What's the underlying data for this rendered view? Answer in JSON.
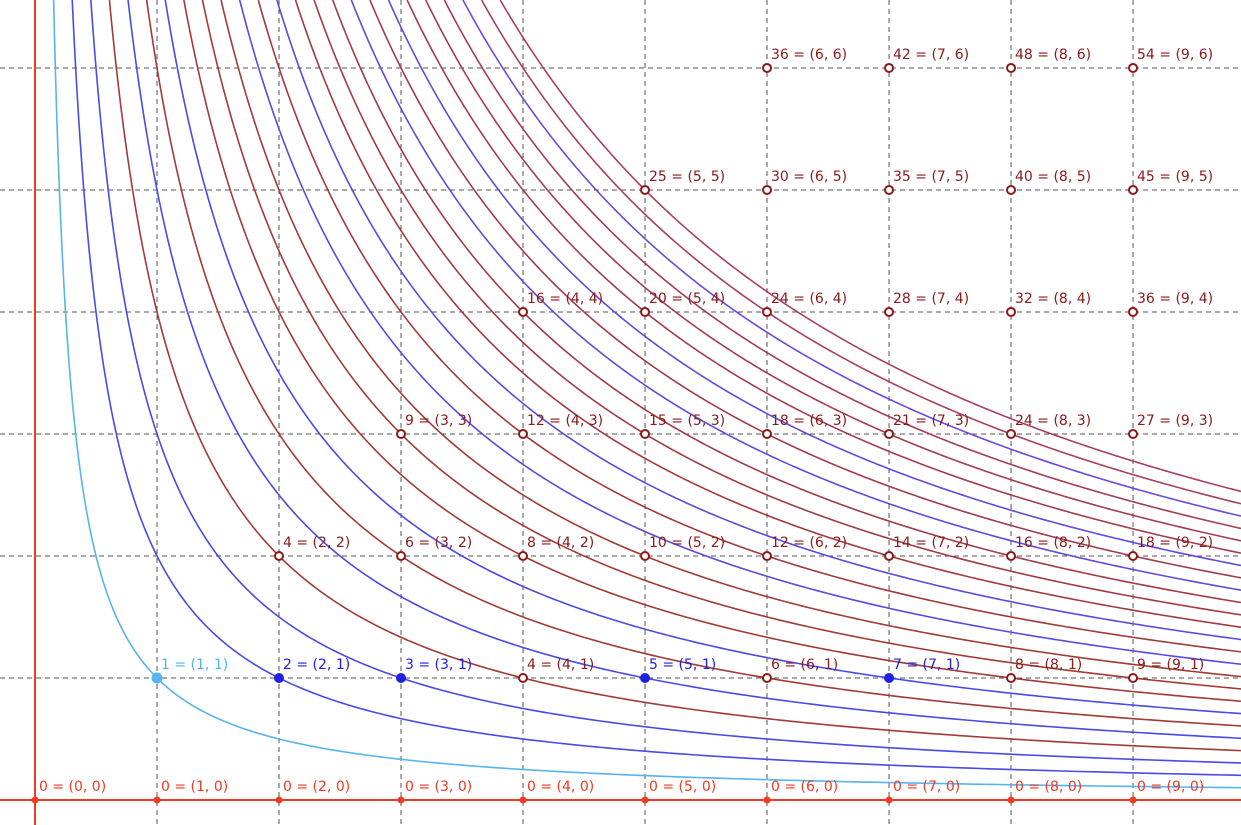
{
  "plot": {
    "xlim": [
      -0.287,
      9.885
    ],
    "ylim": [
      -0.205,
      6.557
    ],
    "xgrid": [
      1,
      2,
      3,
      4,
      5,
      6,
      7,
      8,
      9
    ],
    "ygrid": [
      1,
      2,
      3,
      4,
      5,
      6
    ],
    "axis_color": "#f03a24",
    "grid_color": "#555555",
    "curves": [
      {
        "k": 1,
        "color": "#56b4ee"
      },
      {
        "k": 2,
        "color": "#4a4ae6"
      },
      {
        "k": 3,
        "color": "#4a4ae6"
      },
      {
        "k": 4,
        "color": "#a23a36"
      },
      {
        "k": 5,
        "color": "#4a4ae6"
      },
      {
        "k": 6,
        "color": "#a23a36"
      },
      {
        "k": 7,
        "color": "#4a4ae6"
      },
      {
        "k": 8,
        "color": "#a23a36"
      },
      {
        "k": 9,
        "color": "#a23a36"
      },
      {
        "k": 10,
        "color": "#a23a36"
      },
      {
        "k": 11,
        "color": "#5a4ae0"
      },
      {
        "k": 12,
        "color": "#a23a3c"
      },
      {
        "k": 13,
        "color": "#5a4ae0"
      },
      {
        "k": 14,
        "color": "#a23a40"
      },
      {
        "k": 15,
        "color": "#a23a44"
      },
      {
        "k": 16,
        "color": "#a23a48"
      },
      {
        "k": 17,
        "color": "#604ae0"
      },
      {
        "k": 18,
        "color": "#a23a4c"
      },
      {
        "k": 19,
        "color": "#604ae0"
      },
      {
        "k": 20,
        "color": "#a43c50"
      },
      {
        "k": 21,
        "color": "#a43c54"
      },
      {
        "k": 22,
        "color": "#a43c58"
      },
      {
        "k": 23,
        "color": "#6a4ae0"
      },
      {
        "k": 24,
        "color": "#a8405c"
      },
      {
        "k": 25,
        "color": "#a84060"
      }
    ],
    "point_groups": [
      {
        "color": "#f03a24",
        "filled": true,
        "radius": 2.5,
        "points": [
          {
            "label": "0 = (0, 0)",
            "x": 0,
            "y": 0
          },
          {
            "label": "0 = (1, 0)",
            "x": 1,
            "y": 0
          },
          {
            "label": "0 = (2, 0)",
            "x": 2,
            "y": 0
          },
          {
            "label": "0 = (3, 0)",
            "x": 3,
            "y": 0
          },
          {
            "label": "0 = (4, 0)",
            "x": 4,
            "y": 0
          },
          {
            "label": "0 = (5, 0)",
            "x": 5,
            "y": 0
          },
          {
            "label": "0 = (6, 0)",
            "x": 6,
            "y": 0
          },
          {
            "label": "0 = (7, 0)",
            "x": 7,
            "y": 0
          },
          {
            "label": "0 = (8, 0)",
            "x": 8,
            "y": 0
          },
          {
            "label": "0 = (9, 0)",
            "x": 9,
            "y": 0
          }
        ]
      },
      {
        "color": "#56b4ee",
        "filled": true,
        "radius": 4.5,
        "points": [
          {
            "label": "1 = (1, 1)",
            "x": 1,
            "y": 1
          }
        ]
      },
      {
        "color": "#2020e0",
        "filled": true,
        "radius": 4,
        "points": [
          {
            "label": "2 = (2, 1)",
            "x": 2,
            "y": 1
          },
          {
            "label": "3 = (3, 1)",
            "x": 3,
            "y": 1
          },
          {
            "label": "5 = (5, 1)",
            "x": 5,
            "y": 1
          },
          {
            "label": "7 = (7, 1)",
            "x": 7,
            "y": 1
          }
        ]
      },
      {
        "color": "#8b1a1a",
        "filled": false,
        "radius": 4,
        "points": [
          {
            "label": "4 = (4, 1)",
            "x": 4,
            "y": 1
          },
          {
            "label": "6 = (6, 1)",
            "x": 6,
            "y": 1
          },
          {
            "label": "8 = (8, 1)",
            "x": 8,
            "y": 1
          },
          {
            "label": "9 = (9, 1)",
            "x": 9,
            "y": 1
          },
          {
            "label": "4 = (2, 2)",
            "x": 2,
            "y": 2
          },
          {
            "label": "6 = (3, 2)",
            "x": 3,
            "y": 2
          },
          {
            "label": "8 = (4, 2)",
            "x": 4,
            "y": 2
          },
          {
            "label": "10 = (5, 2)",
            "x": 5,
            "y": 2
          },
          {
            "label": "12 = (6, 2)",
            "x": 6,
            "y": 2
          },
          {
            "label": "14 = (7, 2)",
            "x": 7,
            "y": 2
          },
          {
            "label": "16 = (8, 2)",
            "x": 8,
            "y": 2
          },
          {
            "label": "18 = (9, 2)",
            "x": 9,
            "y": 2
          },
          {
            "label": "9 = (3, 3)",
            "x": 3,
            "y": 3
          },
          {
            "label": "12 = (4, 3)",
            "x": 4,
            "y": 3
          },
          {
            "label": "15 = (5, 3)",
            "x": 5,
            "y": 3
          },
          {
            "label": "18 = (6, 3)",
            "x": 6,
            "y": 3
          },
          {
            "label": "21 = (7, 3)",
            "x": 7,
            "y": 3
          },
          {
            "label": "24 = (8, 3)",
            "x": 8,
            "y": 3
          },
          {
            "label": "27 = (9, 3)",
            "x": 9,
            "y": 3
          },
          {
            "label": "16 = (4, 4)",
            "x": 4,
            "y": 4
          },
          {
            "label": "20 = (5, 4)",
            "x": 5,
            "y": 4
          },
          {
            "label": "24 = (6, 4)",
            "x": 6,
            "y": 4
          },
          {
            "label": "28 = (7, 4)",
            "x": 7,
            "y": 4
          },
          {
            "label": "32 = (8, 4)",
            "x": 8,
            "y": 4
          },
          {
            "label": "36 = (9, 4)",
            "x": 9,
            "y": 4
          },
          {
            "label": "25 = (5, 5)",
            "x": 5,
            "y": 5
          },
          {
            "label": "30 = (6, 5)",
            "x": 6,
            "y": 5
          },
          {
            "label": "35 = (7, 5)",
            "x": 7,
            "y": 5
          },
          {
            "label": "40 = (8, 5)",
            "x": 8,
            "y": 5
          },
          {
            "label": "45 = (9, 5)",
            "x": 9,
            "y": 5
          },
          {
            "label": "36 = (6, 6)",
            "x": 6,
            "y": 6
          },
          {
            "label": "42 = (7, 6)",
            "x": 7,
            "y": 6
          },
          {
            "label": "48 = (8, 6)",
            "x": 8,
            "y": 6
          },
          {
            "label": "54 = (9, 6)",
            "x": 9,
            "y": 6
          }
        ]
      }
    ]
  }
}
